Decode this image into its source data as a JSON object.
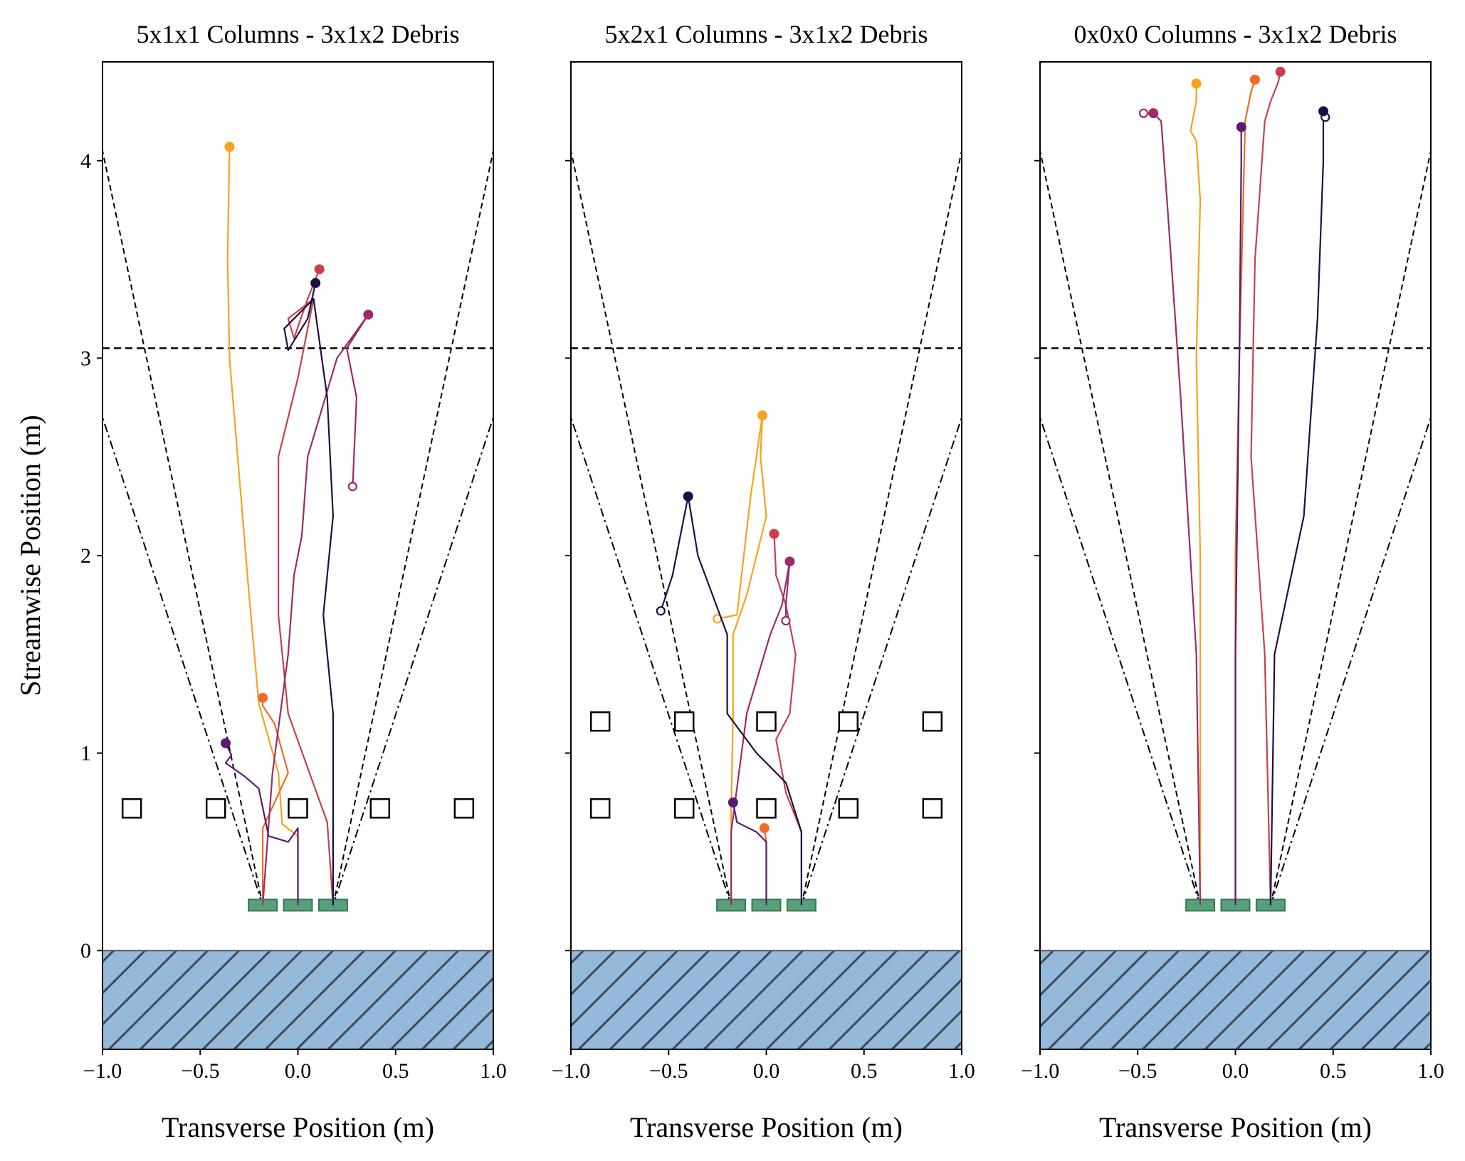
{
  "chart_data": [
    {
      "type": "line",
      "title": "5x1x1 Columns - 3x1x2 Debris",
      "xlabel": "Transverse Position (m)",
      "ylabel": "Streamwise Position (m)",
      "xlim": [
        -1.0,
        1.0
      ],
      "ylim": [
        -0.5,
        4.5
      ],
      "xticks": [
        -1.0,
        -0.5,
        0.0,
        0.5,
        1.0
      ],
      "xtick_labels": [
        "−1.0",
        "−0.5",
        "0.0",
        "0.5",
        "1.0"
      ],
      "yticks": [
        0,
        1,
        2,
        3,
        4
      ],
      "ytick_labels": [
        "0",
        "1",
        "2",
        "3",
        "4"
      ],
      "show_ylabel": true,
      "show_ytick_labels": true,
      "reference_line_y": 3.05,
      "columns": [
        [
          -0.85,
          0.72
        ],
        [
          -0.42,
          0.72
        ],
        [
          0.0,
          0.72
        ],
        [
          0.42,
          0.72
        ],
        [
          0.85,
          0.72
        ]
      ],
      "debris_blocks_x": [
        -0.18,
        0.0,
        0.18
      ],
      "debris_y": 0.23,
      "series": [
        {
          "color": "#f7a21c",
          "points": [
            [
              0.0,
              0.23
            ],
            [
              0.0,
              0.58
            ],
            [
              -0.08,
              0.64
            ],
            [
              -0.1,
              0.9
            ],
            [
              -0.2,
              1.25
            ],
            [
              -0.25,
              1.8
            ],
            [
              -0.35,
              3.0
            ],
            [
              -0.36,
              3.5
            ],
            [
              -0.35,
              4.07
            ]
          ]
        },
        {
          "color": "#ef6c24",
          "points": [
            [
              -0.18,
              0.23
            ],
            [
              -0.18,
              0.62
            ],
            [
              -0.05,
              0.9
            ],
            [
              -0.12,
              1.15
            ],
            [
              -0.18,
              1.24
            ],
            [
              -0.18,
              1.28
            ]
          ]
        },
        {
          "color": "#c93f4e",
          "points": [
            [
              0.18,
              0.23
            ],
            [
              0.15,
              0.65
            ],
            [
              -0.05,
              1.2
            ],
            [
              -0.1,
              1.7
            ],
            [
              -0.1,
              2.5
            ],
            [
              0.0,
              2.9
            ],
            [
              0.08,
              3.3
            ],
            [
              -0.05,
              3.2
            ],
            [
              -0.02,
              3.1
            ],
            [
              0.05,
              3.3
            ],
            [
              0.11,
              3.45
            ]
          ]
        },
        {
          "color": "#9b2b6a",
          "points": [
            [
              -0.18,
              0.23
            ],
            [
              -0.13,
              0.9
            ],
            [
              -0.05,
              1.5
            ],
            [
              -0.02,
              1.9
            ],
            [
              0.02,
              2.1
            ],
            [
              0.05,
              2.5
            ],
            [
              0.2,
              3.0
            ],
            [
              0.36,
              3.22
            ],
            [
              0.25,
              3.05
            ],
            [
              0.3,
              2.8
            ],
            [
              0.28,
              2.35
            ]
          ]
        },
        {
          "color": "#5a1a74",
          "points": [
            [
              0.0,
              0.23
            ],
            [
              0.0,
              0.62
            ],
            [
              -0.05,
              0.55
            ],
            [
              -0.15,
              0.58
            ],
            [
              -0.2,
              0.82
            ],
            [
              -0.27,
              0.88
            ],
            [
              -0.37,
              0.95
            ],
            [
              -0.34,
              0.99
            ],
            [
              -0.37,
              1.05
            ]
          ]
        },
        {
          "color": "#1c1042",
          "points": [
            [
              0.18,
              0.23
            ],
            [
              0.18,
              0.62
            ],
            [
              0.18,
              1.2
            ],
            [
              0.13,
              1.7
            ],
            [
              0.18,
              2.2
            ],
            [
              0.15,
              2.8
            ],
            [
              0.08,
              3.3
            ],
            [
              -0.07,
              3.15
            ],
            [
              -0.05,
              3.04
            ],
            [
              0.05,
              3.2
            ],
            [
              0.09,
              3.38
            ]
          ]
        }
      ]
    },
    {
      "type": "line",
      "title": "5x2x1 Columns - 3x1x2 Debris",
      "xlabel": "Transverse Position (m)",
      "ylabel": "",
      "xlim": [
        -1.0,
        1.0
      ],
      "ylim": [
        -0.5,
        4.5
      ],
      "xticks": [
        -1.0,
        -0.5,
        0.0,
        0.5,
        1.0
      ],
      "xtick_labels": [
        "−1.0",
        "−0.5",
        "0.0",
        "0.5",
        "1.0"
      ],
      "yticks": [
        0,
        1,
        2,
        3,
        4
      ],
      "ytick_labels": [],
      "show_ylabel": false,
      "show_ytick_labels": false,
      "reference_line_y": 3.05,
      "columns": [
        [
          -0.85,
          0.72
        ],
        [
          -0.42,
          0.72
        ],
        [
          0.0,
          0.72
        ],
        [
          0.42,
          0.72
        ],
        [
          0.85,
          0.72
        ],
        [
          -0.85,
          1.16
        ],
        [
          -0.42,
          1.16
        ],
        [
          0.0,
          1.16
        ],
        [
          0.42,
          1.16
        ],
        [
          0.85,
          1.16
        ]
      ],
      "debris_blocks_x": [
        -0.18,
        0.0,
        0.18
      ],
      "debris_y": 0.23,
      "series": [
        {
          "color": "#f7a21c",
          "points": [
            [
              -0.18,
              0.23
            ],
            [
              -0.18,
              0.7
            ],
            [
              -0.17,
              1.2
            ],
            [
              -0.17,
              1.6
            ],
            [
              -0.1,
              1.8
            ],
            [
              -0.05,
              2.0
            ],
            [
              0.0,
              2.2
            ],
            [
              -0.03,
              2.5
            ],
            [
              -0.02,
              2.71
            ],
            [
              -0.08,
              2.3
            ],
            [
              -0.15,
              1.7
            ],
            [
              -0.25,
              1.68
            ]
          ]
        },
        {
          "color": "#ef6c24",
          "points": [
            [
              0.0,
              0.23
            ],
            [
              0.0,
              0.55
            ],
            [
              -0.01,
              0.62
            ]
          ]
        },
        {
          "color": "#c93f4e",
          "points": [
            [
              0.18,
              0.23
            ],
            [
              0.18,
              0.6
            ],
            [
              0.1,
              0.8
            ],
            [
              0.05,
              1.07
            ],
            [
              0.12,
              1.2
            ],
            [
              0.15,
              1.5
            ],
            [
              0.1,
              1.75
            ],
            [
              0.05,
              1.9
            ],
            [
              0.04,
              2.11
            ]
          ]
        },
        {
          "color": "#9b2b6a",
          "points": [
            [
              -0.18,
              0.23
            ],
            [
              -0.18,
              0.6
            ],
            [
              -0.1,
              1.2
            ],
            [
              0.02,
              1.6
            ],
            [
              0.08,
              1.75
            ],
            [
              0.12,
              1.97
            ],
            [
              0.1,
              1.75
            ],
            [
              0.1,
              1.67
            ]
          ]
        },
        {
          "color": "#5a1a74",
          "points": [
            [
              0.0,
              0.23
            ],
            [
              0.0,
              0.55
            ],
            [
              -0.05,
              0.6
            ],
            [
              -0.15,
              0.65
            ],
            [
              -0.17,
              0.75
            ]
          ]
        },
        {
          "color": "#1c1042",
          "points": [
            [
              0.18,
              0.23
            ],
            [
              0.18,
              0.6
            ],
            [
              0.1,
              0.85
            ],
            [
              -0.05,
              1.0
            ],
            [
              -0.2,
              1.2
            ],
            [
              -0.2,
              1.6
            ],
            [
              -0.35,
              2.0
            ],
            [
              -0.4,
              2.3
            ],
            [
              -0.48,
              1.9
            ],
            [
              -0.54,
              1.72
            ]
          ]
        }
      ]
    },
    {
      "type": "line",
      "title": "0x0x0 Columns - 3x1x2 Debris",
      "xlabel": "Transverse Position (m)",
      "ylabel": "",
      "xlim": [
        -1.0,
        1.0
      ],
      "ylim": [
        -0.5,
        4.5
      ],
      "xticks": [
        -1.0,
        -0.5,
        0.0,
        0.5,
        1.0
      ],
      "xtick_labels": [
        "−1.0",
        "−0.5",
        "0.0",
        "0.5",
        "1.0"
      ],
      "yticks": [
        0,
        1,
        2,
        3,
        4
      ],
      "ytick_labels": [],
      "show_ylabel": false,
      "show_ytick_labels": false,
      "reference_line_y": 3.05,
      "columns": [],
      "debris_blocks_x": [
        -0.18,
        0.0,
        0.18
      ],
      "debris_y": 0.23,
      "series": [
        {
          "color": "#f7a21c",
          "points": [
            [
              -0.18,
              0.23
            ],
            [
              -0.18,
              2.0
            ],
            [
              -0.2,
              3.0
            ],
            [
              -0.18,
              3.8
            ],
            [
              -0.2,
              4.1
            ],
            [
              -0.23,
              4.15
            ],
            [
              -0.2,
              4.3
            ],
            [
              -0.2,
              4.39
            ]
          ]
        },
        {
          "color": "#ef6c24",
          "points": [
            [
              0.0,
              0.23
            ],
            [
              0.0,
              2.0
            ],
            [
              0.02,
              3.0
            ],
            [
              0.04,
              3.8
            ],
            [
              0.05,
              4.2
            ],
            [
              0.08,
              4.35
            ],
            [
              0.1,
              4.41
            ]
          ]
        },
        {
          "color": "#c93f4e",
          "points": [
            [
              0.18,
              0.23
            ],
            [
              0.15,
              1.5
            ],
            [
              0.08,
              2.5
            ],
            [
              0.1,
              3.5
            ],
            [
              0.15,
              4.2
            ],
            [
              0.18,
              4.3
            ],
            [
              0.22,
              4.4
            ],
            [
              0.23,
              4.45
            ]
          ]
        },
        {
          "color": "#9b2b6a",
          "points": [
            [
              -0.18,
              0.23
            ],
            [
              -0.2,
              1.5
            ],
            [
              -0.28,
              2.8
            ],
            [
              -0.35,
              3.8
            ],
            [
              -0.38,
              4.2
            ],
            [
              -0.42,
              4.24
            ],
            [
              -0.47,
              4.24
            ]
          ]
        },
        {
          "color": "#5a1a74",
          "points": [
            [
              0.0,
              0.23
            ],
            [
              0.0,
              1.5
            ],
            [
              0.02,
              3.0
            ],
            [
              0.03,
              4.0
            ],
            [
              0.03,
              4.17
            ]
          ]
        },
        {
          "color": "#1c1042",
          "points": [
            [
              0.18,
              0.23
            ],
            [
              0.2,
              1.5
            ],
            [
              0.35,
              2.2
            ],
            [
              0.42,
              3.2
            ],
            [
              0.45,
              4.0
            ],
            [
              0.45,
              4.25
            ],
            [
              0.46,
              4.22
            ]
          ]
        }
      ]
    }
  ]
}
